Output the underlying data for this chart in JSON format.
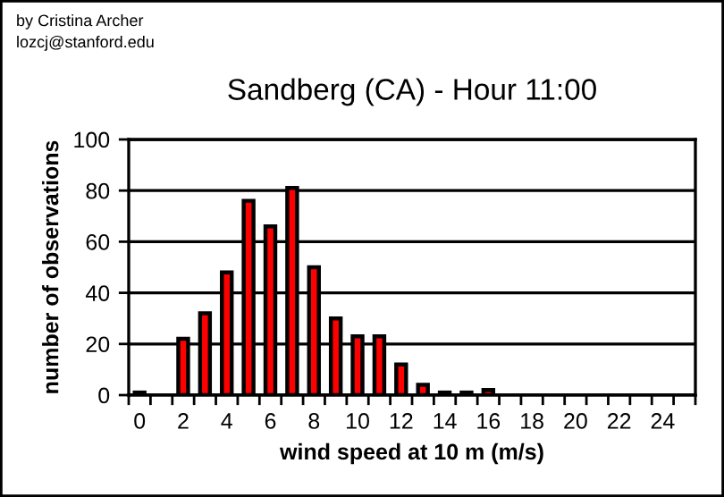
{
  "chart_data": {
    "type": "bar",
    "title": "Sandberg (CA) - Hour 11:00",
    "xlabel": "wind speed at 10 m (m/s)",
    "ylabel": "number of observations",
    "annotations": [
      "by Cristina Archer",
      "lozcj@stanford.edu"
    ],
    "categories": [
      "0",
      null,
      "2",
      null,
      "4",
      null,
      "6",
      null,
      "8",
      null,
      "10",
      null,
      "12",
      null,
      "14",
      null,
      "16",
      null,
      "18",
      null,
      "20",
      null,
      "22",
      null,
      "24",
      null
    ],
    "values": [
      1,
      0,
      22,
      32,
      48,
      76,
      66,
      81,
      50,
      30,
      23,
      23,
      12,
      4,
      1,
      1,
      2,
      0,
      0,
      0,
      0,
      0,
      0,
      0,
      0,
      0
    ],
    "color": "#ff0000",
    "ylim": [
      0,
      100
    ],
    "yticks": [
      0,
      20,
      40,
      60,
      80,
      100
    ],
    "grid": "y",
    "legend": false
  }
}
